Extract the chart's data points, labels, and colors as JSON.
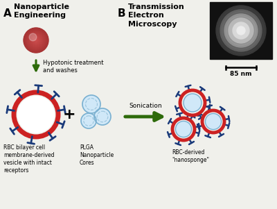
{
  "bg_color": "#f0f0eb",
  "title_A": "Nanoparticle\nEngineering",
  "title_B": "Transmission\nElectron\nMicroscopy",
  "label_A": "A",
  "label_B": "B",
  "label_rbc": "RBC bilayer cell\nmembrane-derived\nvesicle with intact\nreceptors",
  "label_plga": "PLGA\nNanoparticle\nCores",
  "label_nano": "RBC-derived\n\"nanosponge\"",
  "label_arrow1": "Hypotonic treatment\nand washes",
  "label_arrow2": "Sonication",
  "scale_bar": "85 nm",
  "dark_green": "#2d6a0a",
  "red_color": "#cc2222",
  "blue_color": "#1a3a7a",
  "light_blue": "#d0e8f8",
  "rbc_red_dark": "#b03030",
  "rbc_red_mid": "#cc4444",
  "rbc_red_light": "#dd6666"
}
